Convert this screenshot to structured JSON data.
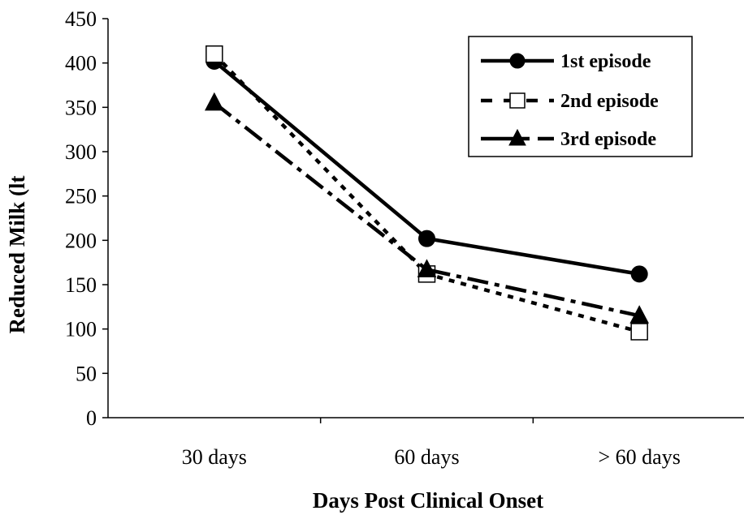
{
  "chart_data": {
    "type": "line",
    "categories": [
      "30 days",
      "60 days",
      "> 60 days"
    ],
    "series": [
      {
        "name": "1st episode",
        "values": [
          402,
          202,
          162
        ],
        "line": "solid",
        "marker": "circle-filled"
      },
      {
        "name": "2nd episode",
        "values": [
          410,
          162,
          97
        ],
        "line": "dotted",
        "marker": "square-open"
      },
      {
        "name": "3rd episode",
        "values": [
          355,
          167,
          115
        ],
        "line": "dash-dot",
        "marker": "triangle-filled"
      }
    ],
    "xlabel": "Days Post Clinical Onset",
    "ylabel": "Reduced Milk (lt",
    "ylim": [
      0,
      450
    ],
    "yticks": [
      0,
      50,
      100,
      150,
      200,
      250,
      300,
      350,
      400,
      450
    ],
    "grid": false,
    "legend_position": "top-right",
    "colors": {
      "lines": "#000000",
      "background": "#ffffff"
    }
  }
}
